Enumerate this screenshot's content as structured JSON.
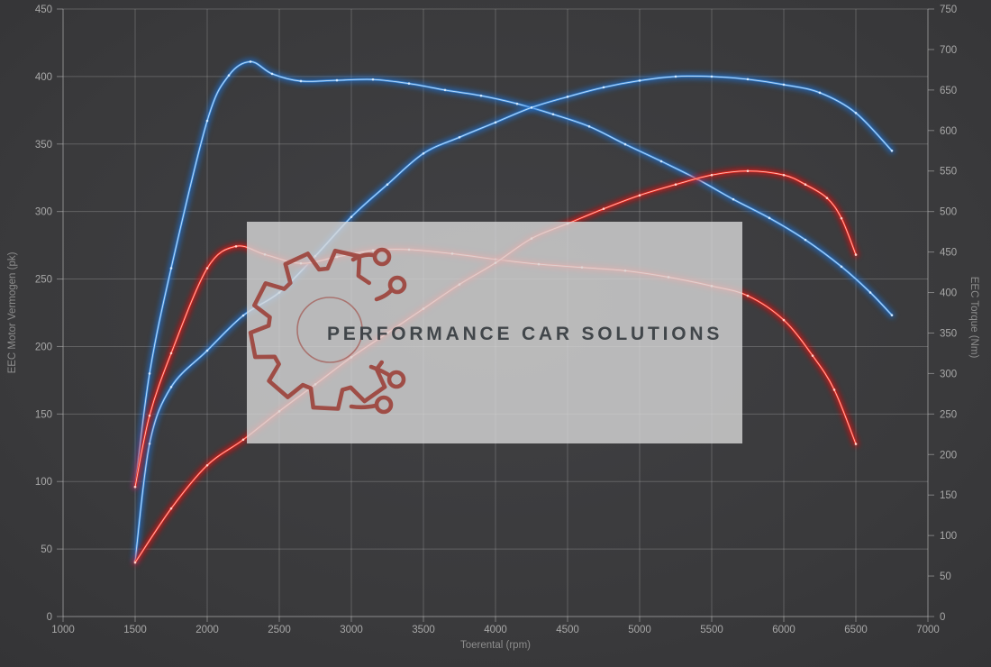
{
  "watermark": {
    "text": "PERFORMANCE CAR SOLUTIONS",
    "logo": "gear-circuit-logo"
  },
  "colors": {
    "background_center": "#414144",
    "background_edge": "#333335",
    "grid": "#b9b9b9",
    "tick_text": "#a8a8a8",
    "axis_title_text": "#8d8d8d",
    "watermark_background": "#d8d8d8",
    "watermark_text": "#3b4045",
    "logo_red": "#9c3f37",
    "blue_main": "#3f8fe0",
    "blue_glow": "#1e6fd0",
    "blue_core": "#d8ecff",
    "red_main": "#f1281c",
    "red_glow": "#dd1111",
    "red_core": "#ffd9d2"
  },
  "chart_data": {
    "type": "line",
    "title": "",
    "xlabel": "Toerental (rpm)",
    "ylabel_left": "EEC Motor Vermogen (pk)",
    "ylabel_right": "EEC Torque (Nm)",
    "xlim": [
      1000,
      7000
    ],
    "ylim_left": [
      0,
      450
    ],
    "ylim_right": [
      0,
      750
    ],
    "x_ticks": [
      1000,
      1500,
      2000,
      2500,
      3000,
      3500,
      4000,
      4500,
      5000,
      5500,
      6000,
      6500,
      7000
    ],
    "y_ticks_left": [
      0,
      50,
      100,
      150,
      200,
      250,
      300,
      350,
      400,
      450
    ],
    "y_ticks_right": [
      0,
      50,
      100,
      150,
      200,
      250,
      300,
      350,
      400,
      450,
      500,
      550,
      600,
      650,
      700,
      750
    ],
    "grid": true,
    "legend": "none",
    "series": [
      {
        "name": "torque-curve-blue",
        "family": "blue",
        "axis": "right",
        "unit": "Nm",
        "x": [
          1500,
          1600,
          1750,
          2000,
          2150,
          2300,
          2450,
          2650,
          2900,
          3150,
          3400,
          3650,
          3900,
          4150,
          4400,
          4650,
          4900,
          5150,
          5400,
          5650,
          5900,
          6150,
          6400,
          6600,
          6750
        ],
        "values": [
          160,
          300,
          430,
          612,
          668,
          685,
          670,
          661,
          662,
          663,
          658,
          650,
          643,
          633,
          620,
          605,
          583,
          562,
          540,
          515,
          492,
          465,
          432,
          400,
          372
        ]
      },
      {
        "name": "power-curve-blue",
        "family": "blue",
        "axis": "left",
        "unit": "pk",
        "x": [
          1500,
          1600,
          1750,
          2000,
          2250,
          2500,
          2750,
          3000,
          3250,
          3500,
          3750,
          4000,
          4250,
          4500,
          4750,
          5000,
          5250,
          5500,
          5750,
          6000,
          6250,
          6500,
          6750
        ],
        "values": [
          41,
          128,
          170,
          197,
          223,
          240,
          267,
          296,
          320,
          343,
          355,
          366,
          377,
          385,
          392,
          397,
          400,
          400,
          398,
          394,
          388,
          373,
          345
        ]
      },
      {
        "name": "torque-curve-red",
        "family": "red",
        "axis": "right",
        "unit": "Nm",
        "x": [
          1500,
          1600,
          1750,
          2000,
          2200,
          2400,
          2650,
          2900,
          3150,
          3400,
          3700,
          4000,
          4300,
          4600,
          4900,
          5200,
          5500,
          5750,
          6000,
          6200,
          6350,
          6500
        ],
        "values": [
          160,
          248,
          325,
          430,
          457,
          447,
          436,
          444,
          452,
          453,
          448,
          441,
          435,
          431,
          427,
          419,
          408,
          396,
          366,
          322,
          280,
          213
        ]
      },
      {
        "name": "power-curve-red",
        "family": "red",
        "axis": "left",
        "unit": "pk",
        "x": [
          1500,
          1750,
          2000,
          2250,
          2500,
          2750,
          3000,
          3250,
          3500,
          3750,
          4000,
          4250,
          4500,
          4750,
          5000,
          5250,
          5500,
          5750,
          6000,
          6150,
          6300,
          6400,
          6500
        ],
        "values": [
          40,
          80,
          112,
          131,
          152,
          172,
          192,
          210,
          228,
          246,
          262,
          280,
          291,
          302,
          312,
          320,
          327,
          330,
          327,
          320,
          310,
          295,
          268
        ]
      }
    ]
  }
}
